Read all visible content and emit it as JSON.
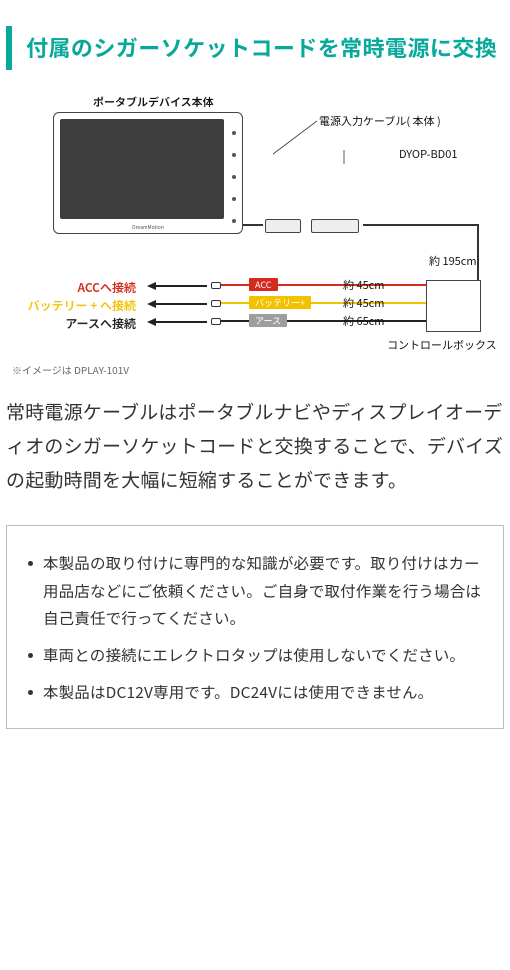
{
  "title": "付属のシガーソケットコードを常時電源に交換",
  "diagram": {
    "deviceLabel": "ポータブルデバイス本体",
    "brand": "DreamMotion",
    "cableInLabel": "電源入力ケーブル( 本体 )",
    "productCode": "DYOP-BD01",
    "mainCableLen": "約 195cm",
    "controlBoxLabel": "コントロールボックス",
    "wires": [
      {
        "targetLabel": "ACCへ接続",
        "boxLabel": "ACC",
        "length": "約 45cm",
        "color": "#d52b1e",
        "boxColor": "#d52b1e"
      },
      {
        "targetLabel": "バッテリー + へ接続",
        "boxLabel": "バッテリー+",
        "length": "約 45cm",
        "color": "#f2c200",
        "boxColor": "#f2c200"
      },
      {
        "targetLabel": "アースへ接続",
        "boxLabel": "アース",
        "length": "約 65cm",
        "color": "#222222",
        "boxColor": "#9e9e9e"
      }
    ],
    "arrowColor": "#222222",
    "footnote": "※イメージは DPLAY-101V"
  },
  "bodyText": "常時電源ケーブルはポータブルナビやディスプレイオーディオのシガーソケットコードと交換することで、デバイズの起動時間を大幅に短縮することができます。",
  "notices": [
    "本製品の取り付けに専門的な知識が必要です。取り付けはカー用品店などにご依頼ください。ご自身で取付作業を行う場合は自己責任で行ってください。",
    "車両との接続にエレクトロタップは使用しないでください。",
    "本製品はDC12V専用です。DC24Vには使用できません。"
  ]
}
